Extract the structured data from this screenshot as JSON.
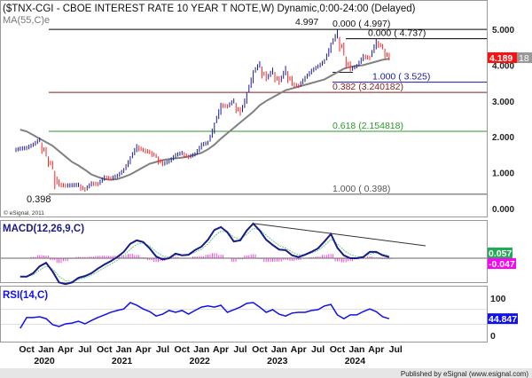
{
  "header": {
    "title": "($TNX-CGI - CBOE INTEREST RATE 10 YEAR T NOTE,W) Dynamic,0:00-24:00 (Delayed)",
    "ma_label": "MA(55,C)e",
    "copyright": "© eSignal, 2011"
  },
  "footer": {
    "published": "Published by eSignal (www.esignal.com)"
  },
  "colors": {
    "up": "#1a1a9a",
    "down": "#ff2020",
    "ma": "#808080",
    "macd": "#1a1a8a",
    "signal": "#66cc88",
    "histogram": "#ff44dd",
    "rsi": "#1010ee",
    "last_price_bg": "#ff1010",
    "macd_signal_box": "#22aa55",
    "histogram_box": "#ff00ff",
    "rsi_box": "#1010ee"
  },
  "chart_data": [
    {
      "type": "bar",
      "name_label": "price",
      "x_months": [
        "2019-09",
        "2019-10",
        "2019-11",
        "2019-12",
        "2020-01",
        "2020-02",
        "2020-03",
        "2020-04",
        "2020-05",
        "2020-06",
        "2020-07",
        "2020-08",
        "2020-09",
        "2020-10",
        "2020-11",
        "2020-12",
        "2021-01",
        "2021-02",
        "2021-03",
        "2021-04",
        "2021-05",
        "2021-06",
        "2021-07",
        "2021-08",
        "2021-09",
        "2021-10",
        "2021-11",
        "2021-12",
        "2022-01",
        "2022-02",
        "2022-03",
        "2022-04",
        "2022-05",
        "2022-06",
        "2022-07",
        "2022-08",
        "2022-09",
        "2022-10",
        "2022-11",
        "2022-12",
        "2023-01",
        "2023-02",
        "2023-03",
        "2023-04",
        "2023-05",
        "2023-06",
        "2023-07",
        "2023-08",
        "2023-09",
        "2023-10",
        "2023-11",
        "2023-12",
        "2024-01",
        "2024-02",
        "2024-03",
        "2024-04",
        "2024-05",
        "2024-06"
      ],
      "close": [
        1.67,
        1.69,
        1.78,
        1.92,
        1.51,
        1.15,
        0.67,
        0.64,
        0.65,
        0.66,
        0.53,
        0.7,
        0.68,
        0.87,
        0.84,
        0.91,
        1.07,
        1.4,
        1.74,
        1.63,
        1.58,
        1.47,
        1.24,
        1.31,
        1.49,
        1.55,
        1.44,
        1.51,
        1.78,
        1.83,
        2.34,
        2.89,
        2.85,
        3.01,
        2.65,
        3.19,
        3.8,
        4.05,
        3.61,
        3.87,
        3.51,
        3.92,
        3.48,
        3.42,
        3.64,
        3.84,
        3.96,
        4.11,
        4.57,
        4.93,
        4.33,
        3.88,
        3.97,
        4.25,
        4.2,
        4.68,
        4.5,
        4.189
      ],
      "ma55": [
        2.2,
        2.15,
        2.05,
        1.95,
        1.85,
        1.75,
        1.6,
        1.45,
        1.3,
        1.2,
        1.08,
        0.95,
        0.88,
        0.82,
        0.8,
        0.82,
        0.88,
        0.95,
        1.05,
        1.15,
        1.25,
        1.3,
        1.35,
        1.38,
        1.4,
        1.42,
        1.45,
        1.5,
        1.55,
        1.65,
        1.78,
        1.95,
        2.1,
        2.25,
        2.4,
        2.55,
        2.7,
        2.88,
        3.0,
        3.1,
        3.2,
        3.3,
        3.35,
        3.4,
        3.45,
        3.5,
        3.55,
        3.6,
        3.7,
        3.8,
        3.9,
        3.95,
        3.98,
        4.0,
        4.05,
        4.1,
        4.15,
        4.18
      ],
      "low_point": {
        "label": "0.398",
        "value": 0.398,
        "month": "2020-03"
      },
      "high_point": {
        "label": "4.997",
        "value": 4.997,
        "month": "2023-10"
      },
      "fib_levels": [
        {
          "label": "0.000 ( 4.997)",
          "value": 4.997,
          "color": "#000000"
        },
        {
          "label": "0.000 ( 4.737)",
          "value": 4.737,
          "color": "#000000"
        },
        {
          "label": "1.000 ( 3.525)",
          "value": 3.525,
          "color": "#1a1a9a"
        },
        {
          "label": "0.382 (3.240182)",
          "value": 3.240182,
          "color": "#8b1a1a"
        },
        {
          "label": "0.618 (2.154818)",
          "value": 2.154818,
          "color": "#2a9a2a"
        },
        {
          "label": "1.000 ( 0.398)",
          "value": 0.398,
          "color": "#555555"
        }
      ],
      "y_ticks": [
        "5.000",
        "4.000",
        "3.000",
        "2.000",
        "1.000",
        "0.000"
      ],
      "ylim": [
        0,
        5
      ],
      "last_price": "4.189",
      "last_price_suffix": "18"
    },
    {
      "type": "line",
      "title": "MACD(12,26,9,C)",
      "macd": [
        -0.32,
        -0.32,
        -0.26,
        -0.14,
        -0.08,
        -0.23,
        -0.42,
        -0.45,
        -0.42,
        -0.34,
        -0.31,
        -0.26,
        -0.18,
        -0.11,
        -0.05,
        0.02,
        0.11,
        0.25,
        0.31,
        0.28,
        0.17,
        0.03,
        -0.02,
        0.0,
        0.08,
        0.05,
        0.06,
        0.14,
        0.2,
        0.32,
        0.49,
        0.54,
        0.45,
        0.29,
        0.31,
        0.48,
        0.6,
        0.48,
        0.32,
        0.23,
        0.15,
        0.14,
        0.05,
        0.02,
        0.06,
        0.11,
        0.17,
        0.29,
        0.42,
        0.18,
        0.05,
        0.0,
        0.0,
        0.02,
        0.11,
        0.11,
        0.05,
        0.02
      ],
      "signal_value": "0.057",
      "histogram_value": "-0.047"
    },
    {
      "type": "line",
      "title": "RSI(14,C)",
      "rsi": [
        19,
        48,
        48,
        50,
        45,
        29,
        24,
        31,
        33,
        38,
        31,
        40,
        48,
        55,
        62,
        67,
        71,
        88,
        81,
        71,
        64,
        52,
        57,
        67,
        62,
        67,
        57,
        67,
        76,
        79,
        76,
        81,
        62,
        69,
        76,
        86,
        88,
        76,
        62,
        69,
        57,
        52,
        60,
        62,
        62,
        67,
        69,
        79,
        83,
        55,
        45,
        55,
        55,
        64,
        71,
        64,
        50,
        44.847
      ],
      "y_ticks": [
        "100",
        "0"
      ],
      "ylim": [
        0,
        100
      ],
      "last_value": "44.847"
    }
  ],
  "x_axis": {
    "month_labels": [
      {
        "label": "Oct",
        "i": 1
      },
      {
        "label": "Jan",
        "i": 4
      },
      {
        "label": "Apr",
        "i": 7
      },
      {
        "label": "Jul",
        "i": 10
      },
      {
        "label": "Oct",
        "i": 13
      },
      {
        "label": "Jan",
        "i": 16
      },
      {
        "label": "Apr",
        "i": 19
      },
      {
        "label": "Jul",
        "i": 22
      },
      {
        "label": "Oct",
        "i": 25
      },
      {
        "label": "Jan",
        "i": 28
      },
      {
        "label": "Apr",
        "i": 31
      },
      {
        "label": "Jul",
        "i": 34
      },
      {
        "label": "Oct",
        "i": 37
      },
      {
        "label": "Jan",
        "i": 40
      },
      {
        "label": "Apr",
        "i": 43
      },
      {
        "label": "Jul",
        "i": 46
      },
      {
        "label": "Oct",
        "i": 49
      },
      {
        "label": "Jan",
        "i": 52
      },
      {
        "label": "Apr",
        "i": 55
      },
      {
        "label": "Jul",
        "i": 58
      }
    ],
    "year_labels": [
      {
        "label": "2020",
        "i": 4
      },
      {
        "label": "2021",
        "i": 16
      },
      {
        "label": "2022",
        "i": 28
      },
      {
        "label": "2023",
        "i": 40
      },
      {
        "label": "2024",
        "i": 52
      }
    ]
  }
}
